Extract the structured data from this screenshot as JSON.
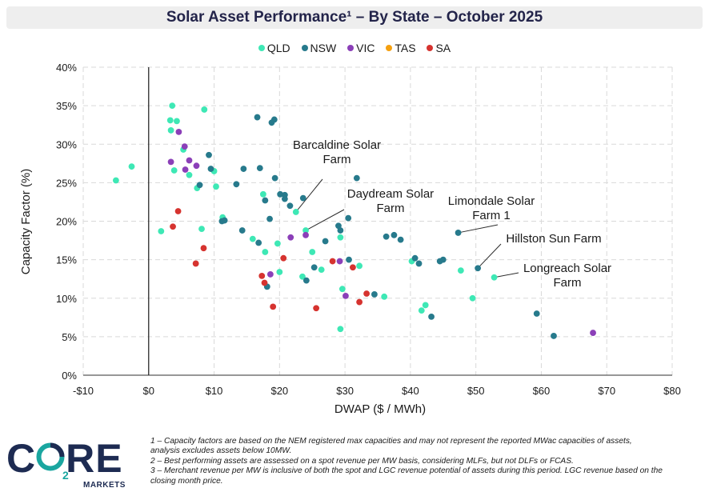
{
  "header": {
    "title": "Solar Asset Performance¹ – By State – October 2025"
  },
  "chart_data": {
    "type": "scatter",
    "title": "Solar Asset Performance¹ – By State – October 2025",
    "xlabel": "DWAP ($ / MWh)",
    "ylabel": "Capacity Factor (%)",
    "xlim": [
      -10,
      80
    ],
    "ylim": [
      0,
      40
    ],
    "x_ticks": [
      -10,
      0,
      10,
      20,
      30,
      40,
      50,
      60,
      70,
      80
    ],
    "x_tick_labels": [
      "-$10",
      "$0",
      "$10",
      "$20",
      "$30",
      "$40",
      "$50",
      "$60",
      "$70",
      "$80"
    ],
    "y_ticks": [
      0,
      5,
      10,
      15,
      20,
      25,
      30,
      35,
      40
    ],
    "y_tick_labels": [
      "0%",
      "5%",
      "10%",
      "15%",
      "20%",
      "25%",
      "30%",
      "35%",
      "40%"
    ],
    "grid": true,
    "legend_position": "top-center",
    "series": [
      {
        "name": "QLD",
        "color": "#3ee8b5",
        "points": [
          [
            3.6,
            35.0
          ],
          [
            8.5,
            34.5
          ],
          [
            3.3,
            33.1
          ],
          [
            4.3,
            33.0
          ],
          [
            3.4,
            31.8
          ],
          [
            5.3,
            29.3
          ],
          [
            -2.6,
            27.1
          ],
          [
            3.9,
            26.6
          ],
          [
            10.0,
            26.5
          ],
          [
            6.2,
            26.0
          ],
          [
            -5.0,
            25.3
          ],
          [
            7.4,
            24.3
          ],
          [
            10.3,
            24.5
          ],
          [
            17.5,
            23.5
          ],
          [
            11.3,
            20.5
          ],
          [
            22.5,
            21.2
          ],
          [
            24.0,
            18.8
          ],
          [
            1.9,
            18.7
          ],
          [
            8.1,
            19.0
          ],
          [
            15.9,
            17.7
          ],
          [
            19.7,
            17.1
          ],
          [
            29.3,
            17.9
          ],
          [
            17.8,
            16.0
          ],
          [
            25.0,
            16.0
          ],
          [
            20.0,
            13.4
          ],
          [
            23.5,
            12.8
          ],
          [
            26.4,
            13.7
          ],
          [
            32.2,
            14.2
          ],
          [
            40.2,
            14.8
          ],
          [
            47.7,
            13.6
          ],
          [
            52.8,
            12.7
          ],
          [
            29.6,
            11.2
          ],
          [
            36.0,
            10.2
          ],
          [
            49.5,
            10.0
          ],
          [
            42.3,
            9.1
          ],
          [
            41.7,
            8.4
          ],
          [
            29.3,
            6.0
          ]
        ]
      },
      {
        "name": "NSW",
        "color": "#277a8c",
        "points": [
          [
            16.6,
            33.5
          ],
          [
            19.2,
            33.2
          ],
          [
            18.8,
            32.8
          ],
          [
            9.2,
            28.6
          ],
          [
            9.5,
            26.8
          ],
          [
            14.5,
            26.8
          ],
          [
            17.0,
            26.9
          ],
          [
            19.3,
            25.6
          ],
          [
            31.8,
            25.6
          ],
          [
            13.4,
            24.8
          ],
          [
            7.8,
            24.7
          ],
          [
            20.1,
            23.5
          ],
          [
            20.8,
            23.4
          ],
          [
            20.8,
            22.9
          ],
          [
            23.6,
            23.0
          ],
          [
            17.8,
            22.7
          ],
          [
            21.6,
            22.0
          ],
          [
            11.2,
            20.0
          ],
          [
            11.6,
            20.1
          ],
          [
            18.5,
            20.3
          ],
          [
            30.5,
            20.4
          ],
          [
            29.0,
            19.4
          ],
          [
            29.3,
            18.8
          ],
          [
            14.3,
            18.8
          ],
          [
            36.3,
            18.0
          ],
          [
            37.5,
            18.2
          ],
          [
            38.5,
            17.6
          ],
          [
            27.0,
            17.4
          ],
          [
            16.8,
            17.2
          ],
          [
            47.3,
            18.5
          ],
          [
            40.7,
            15.2
          ],
          [
            30.6,
            15.0
          ],
          [
            41.3,
            14.5
          ],
          [
            45.0,
            15.0
          ],
          [
            44.5,
            14.8
          ],
          [
            25.3,
            14.0
          ],
          [
            24.1,
            12.3
          ],
          [
            18.1,
            11.5
          ],
          [
            50.3,
            13.9
          ],
          [
            34.5,
            10.5
          ],
          [
            59.3,
            8.0
          ],
          [
            43.2,
            7.6
          ],
          [
            61.9,
            5.1
          ]
        ]
      },
      {
        "name": "VIC",
        "color": "#8b3fb8",
        "points": [
          [
            4.6,
            31.6
          ],
          [
            5.5,
            29.7
          ],
          [
            6.2,
            27.9
          ],
          [
            3.4,
            27.7
          ],
          [
            7.3,
            27.2
          ],
          [
            5.6,
            26.7
          ],
          [
            21.7,
            17.9
          ],
          [
            24.0,
            18.2
          ],
          [
            29.2,
            14.8
          ],
          [
            18.6,
            13.1
          ],
          [
            30.1,
            10.3
          ],
          [
            67.9,
            5.5
          ]
        ]
      },
      {
        "name": "TAS",
        "color": "#f5a00f",
        "points": []
      },
      {
        "name": "SA",
        "color": "#d6332f",
        "points": [
          [
            4.5,
            21.3
          ],
          [
            3.7,
            19.3
          ],
          [
            8.4,
            16.5
          ],
          [
            7.2,
            14.5
          ],
          [
            20.6,
            15.2
          ],
          [
            28.1,
            14.8
          ],
          [
            31.2,
            14.0
          ],
          [
            17.3,
            12.9
          ],
          [
            17.7,
            12.0
          ],
          [
            33.3,
            10.6
          ],
          [
            32.2,
            9.5
          ],
          [
            19.0,
            8.9
          ],
          [
            25.6,
            8.7
          ]
        ]
      }
    ],
    "annotations": [
      {
        "lines": [
          "Barcaldine Solar",
          "Farm"
        ],
        "point": [
          22.5,
          21.2
        ]
      },
      {
        "lines": [
          "Daydream Solar",
          "Farm"
        ],
        "point": [
          24.0,
          18.8
        ]
      },
      {
        "lines": [
          "Limondale Solar",
          "Farm 1"
        ],
        "point": [
          47.3,
          18.5
        ]
      },
      {
        "lines": [
          "Hillston Sun Farm"
        ],
        "point": [
          50.3,
          13.9
        ]
      },
      {
        "lines": [
          "Longreach Solar",
          "Farm"
        ],
        "point": [
          52.8,
          12.7
        ]
      }
    ]
  },
  "logo": {
    "text": "CORE",
    "subscript": "2",
    "tagline": "MARKETS"
  },
  "footnotes": [
    "1 – Capacity factors are based on the NEM registered max capacities and may not represent the reported MWac capacities of assets, analysis excludes assets below 10MW.",
    "2 – Best performing assets are assessed on a spot revenue per MW basis, considering MLFs, but not DLFs or FCAS.",
    "3 – Merchant revenue per MW is inclusive of both the spot and LGC revenue potential of assets during this period. LGC revenue based on the closing month price."
  ]
}
